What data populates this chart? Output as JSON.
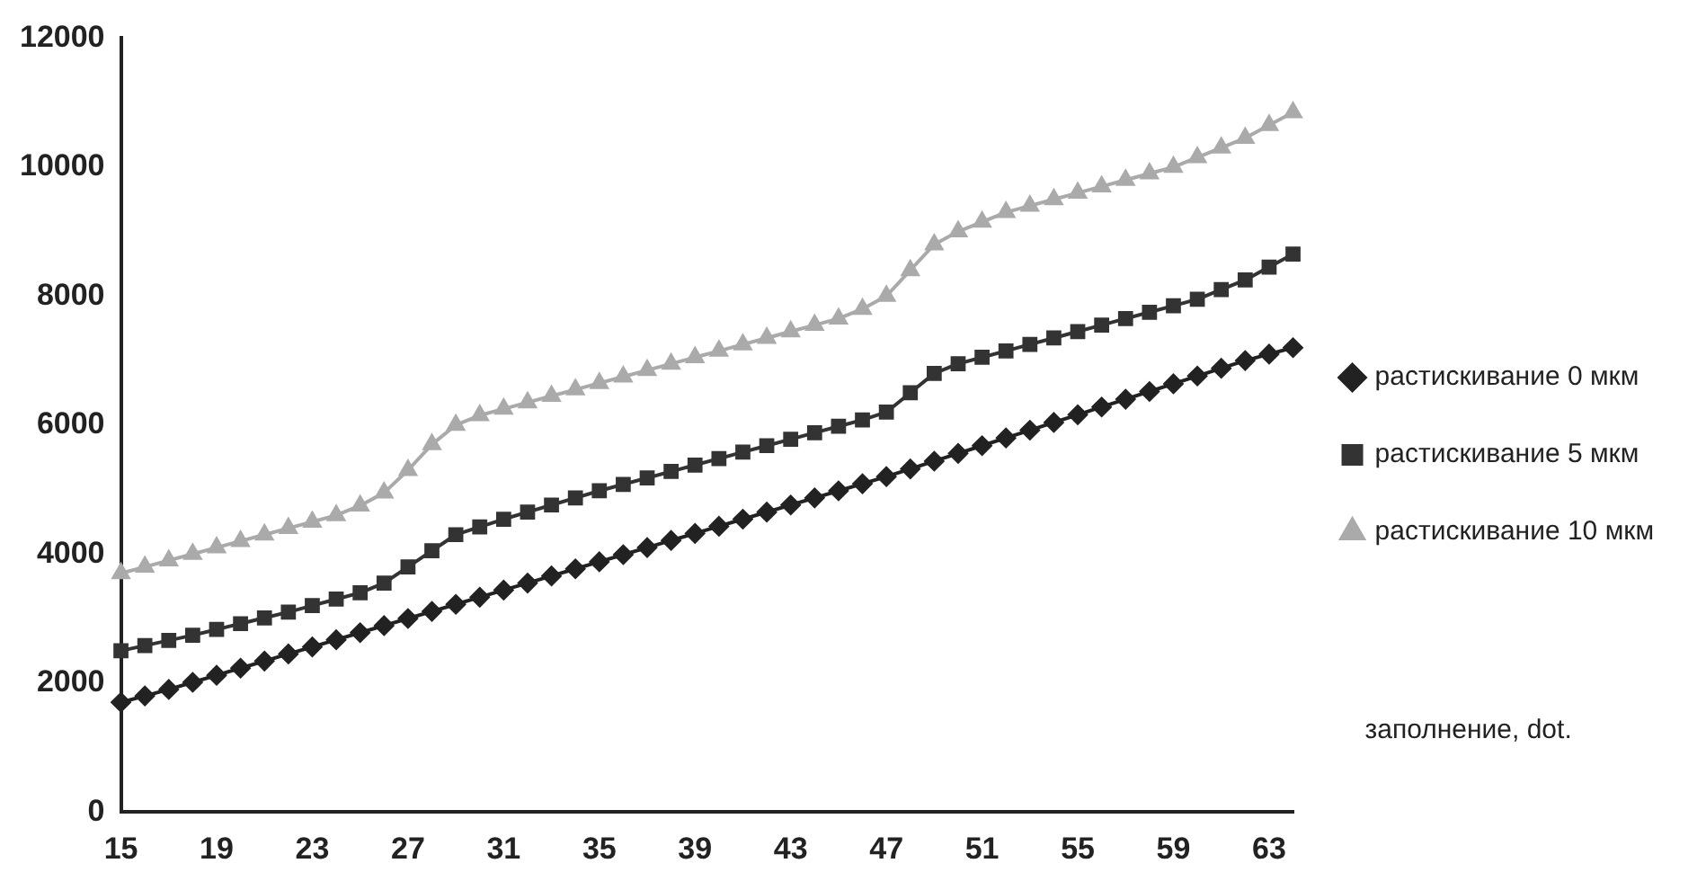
{
  "chart_data": {
    "type": "line",
    "xlabel": "заполнение, dot.",
    "categories": [
      "15",
      null,
      null,
      null,
      "19",
      null,
      null,
      null,
      "23",
      null,
      null,
      null,
      "27",
      null,
      null,
      null,
      "31",
      null,
      null,
      null,
      "35",
      null,
      null,
      null,
      "39",
      null,
      null,
      null,
      "43",
      null,
      null,
      null,
      "47",
      null,
      null,
      null,
      "51",
      null,
      null,
      null,
      "55",
      null,
      null,
      null,
      "59",
      null,
      null,
      null,
      "63",
      null
    ],
    "series": [
      {
        "name": "растискивание 0 мкм",
        "color": "#222222",
        "marker": "diamond",
        "values": [
          1700,
          1800,
          1900,
          2010,
          2120,
          2230,
          2340,
          2450,
          2560,
          2670,
          2780,
          2890,
          3000,
          3110,
          3220,
          3330,
          3440,
          3550,
          3660,
          3770,
          3880,
          3990,
          4100,
          4210,
          4320,
          4430,
          4540,
          4650,
          4760,
          4870,
          4980,
          5090,
          5200,
          5320,
          5440,
          5560,
          5680,
          5800,
          5920,
          6040,
          6160,
          6280,
          6400,
          6520,
          6640,
          6760,
          6880,
          7000,
          7100,
          7200
        ]
      },
      {
        "name": "растискивание 5 мкм",
        "color": "#333333",
        "marker": "square",
        "values": [
          2500,
          2580,
          2660,
          2740,
          2830,
          2920,
          3010,
          3100,
          3200,
          3300,
          3400,
          3550,
          3800,
          4050,
          4300,
          4420,
          4540,
          4650,
          4760,
          4870,
          4980,
          5080,
          5180,
          5280,
          5380,
          5480,
          5580,
          5680,
          5780,
          5880,
          5980,
          6080,
          6200,
          6500,
          6800,
          6950,
          7050,
          7150,
          7250,
          7350,
          7450,
          7550,
          7650,
          7750,
          7850,
          7950,
          8100,
          8250,
          8450,
          8650
        ]
      },
      {
        "name": "растискивание 10 мкм",
        "color": "#aaaaaa",
        "marker": "triangle",
        "values": [
          3700,
          3800,
          3900,
          4000,
          4100,
          4200,
          4300,
          4400,
          4500,
          4600,
          4750,
          4950,
          5300,
          5700,
          6000,
          6150,
          6250,
          6350,
          6450,
          6550,
          6650,
          6750,
          6850,
          6950,
          7050,
          7150,
          7250,
          7350,
          7450,
          7550,
          7650,
          7800,
          8000,
          8400,
          8800,
          9000,
          9150,
          9300,
          9400,
          9500,
          9600,
          9700,
          9800,
          9900,
          10000,
          10150,
          10300,
          10450,
          10650,
          10850
        ]
      }
    ],
    "ylim": [
      0,
      12000
    ],
    "yticks": [
      0,
      2000,
      4000,
      6000,
      8000,
      10000,
      12000
    ],
    "legend": "right",
    "line_style": "solid"
  }
}
